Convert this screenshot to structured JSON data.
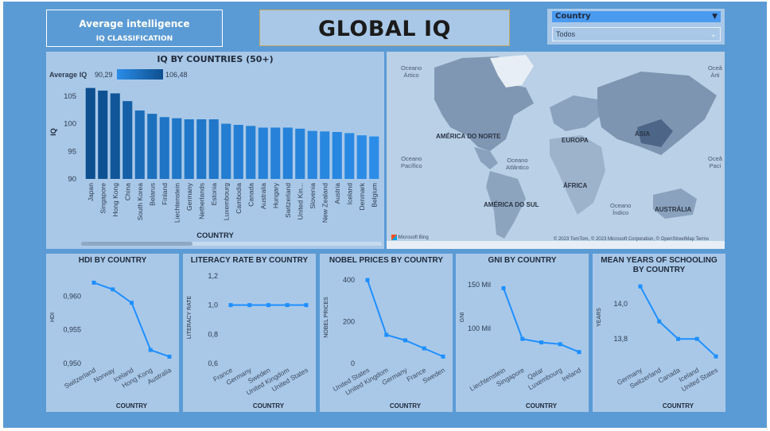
{
  "header": {
    "card_title": "Average intelligence",
    "card_subtitle": "IQ CLASSIFICATION",
    "main_title": "GLOBAL IQ"
  },
  "slicer": {
    "label": "Country",
    "value": "Todos"
  },
  "bar_chart": {
    "title": "IQ BY COUNTRIES (50+)",
    "legend_label": "Average IQ",
    "legend_min": "90,29",
    "legend_max": "106,48",
    "ylabel": "IQ",
    "xlabel": "COUNTRY",
    "yticks": [
      "105",
      "100",
      "95",
      "90"
    ]
  },
  "map": {
    "labels": {
      "arctic_left": "Oceano\nÁrtico",
      "arctic_right": "Oceâ\nÁrti",
      "north_america": "AMÉRICA DO NORTE",
      "europe": "EUROPA",
      "asia": "ÁSIA",
      "africa": "ÁFRICA",
      "south_america": "AMÉRICA DO SUL",
      "australia": "AUSTRÁLIA",
      "pacific_left": "Oceano\nPacífico",
      "pacific_right": "Oceâ\nPaci",
      "atlantic": "Oceano\nAtlântico",
      "indian": "Oceano\nÍndico"
    },
    "attribution_logo": "Microsoft Bing",
    "attribution": "© 2023 TomTom, © 2023 Microsoft Corporation, © OpenStreetMap  Terms"
  },
  "colors": {
    "canvas": "#5b9bd5",
    "panel": "#a9c8e8",
    "line": "#1e8fff",
    "bar_dark": "#0d4f8f",
    "bar_light": "#2b8de8"
  },
  "chart_data": [
    {
      "id": "iq",
      "type": "bar",
      "title": "IQ BY COUNTRIES (50+)",
      "xlabel": "COUNTRY",
      "ylabel": "IQ",
      "ylim": [
        90,
        107
      ],
      "yticks": [
        90,
        95,
        100,
        105
      ],
      "categories": [
        "Japan",
        "Singapore",
        "Hong Kong",
        "China",
        "South Korea",
        "Belarus",
        "Finland",
        "Liechtenstein",
        "Germany",
        "Netherlands",
        "Estonia",
        "Luxembourg",
        "Cambodia",
        "Canada",
        "Australia",
        "Hungary",
        "Switzerland",
        "United Kin...",
        "Slovenia",
        "New Zealand",
        "Austria",
        "Iceland",
        "Denmark",
        "Belgium"
      ],
      "values": [
        106.48,
        106.0,
        105.5,
        104.1,
        102.4,
        101.8,
        101.2,
        101.0,
        100.8,
        100.8,
        100.8,
        100.0,
        99.8,
        99.6,
        99.3,
        99.3,
        99.3,
        99.1,
        98.7,
        98.6,
        98.5,
        98.3,
        97.9,
        97.7
      ]
    },
    {
      "id": "hdi",
      "type": "line",
      "title": "HDI BY COUNTRY",
      "xlabel": "COUNTRY",
      "ylabel": "HDI",
      "categories": [
        "Switzerland",
        "Norway",
        "Iceland",
        "Hong Kong",
        "Australia"
      ],
      "values": [
        0.962,
        0.961,
        0.959,
        0.952,
        0.951
      ],
      "ylim": [
        0.95,
        0.963
      ],
      "ytick_labels": [
        "0,960",
        "0,955",
        "0,950"
      ],
      "yticks": [
        0.96,
        0.955,
        0.95
      ]
    },
    {
      "id": "literacy",
      "type": "line",
      "title": "LITERACY RATE BY COUNTRY",
      "xlabel": "COUNTRY",
      "ylabel": "LITERACY RATE",
      "categories": [
        "France",
        "Germany",
        "Sweden",
        "United Kingdom",
        "United States"
      ],
      "values": [
        1.0,
        1.0,
        1.0,
        1.0,
        1.0
      ],
      "ylim": [
        0.6,
        1.2
      ],
      "ytick_labels": [
        "1,2",
        "1,0",
        "0,8",
        "0,6"
      ],
      "yticks": [
        1.2,
        1.0,
        0.8,
        0.6
      ]
    },
    {
      "id": "nobel",
      "type": "line",
      "title": "NOBEL PRICES BY COUNTRY",
      "xlabel": "COUNTRY",
      "ylabel": "NOBEL PRICES",
      "categories": [
        "United States",
        "United Kingdom",
        "Germany",
        "France",
        "Sweden"
      ],
      "values": [
        400,
        137,
        111,
        72,
        33
      ],
      "ylim": [
        0,
        420
      ],
      "ytick_labels": [
        "400",
        "200",
        "0"
      ],
      "yticks": [
        400,
        200,
        0
      ]
    },
    {
      "id": "gni",
      "type": "line",
      "title": "GNI BY COUNTRY",
      "xlabel": "COUNTRY",
      "ylabel": "GNI",
      "categories": [
        "Liechtenstein",
        "Singapore",
        "Qatar",
        "Luxembourg",
        "Ireland"
      ],
      "values": [
        146000,
        88000,
        84000,
        82000,
        73000
      ],
      "ylim": [
        60000,
        160000
      ],
      "ytick_labels": [
        "150 Mil",
        "100 Mil"
      ],
      "yticks": [
        150000,
        100000
      ]
    },
    {
      "id": "schooling",
      "type": "line",
      "title": "MEAN YEARS OF SCHOOLING BY COUNTRY",
      "xlabel": "COUNTRY",
      "ylabel": "YEARS",
      "categories": [
        "Germany",
        "Switzerland",
        "Canada",
        "Iceland",
        "United States"
      ],
      "values": [
        14.1,
        13.9,
        13.8,
        13.8,
        13.7
      ],
      "ylim": [
        13.66,
        14.16
      ],
      "ytick_labels": [
        "14,0",
        "13,8"
      ],
      "yticks": [
        14.0,
        13.8
      ]
    }
  ]
}
